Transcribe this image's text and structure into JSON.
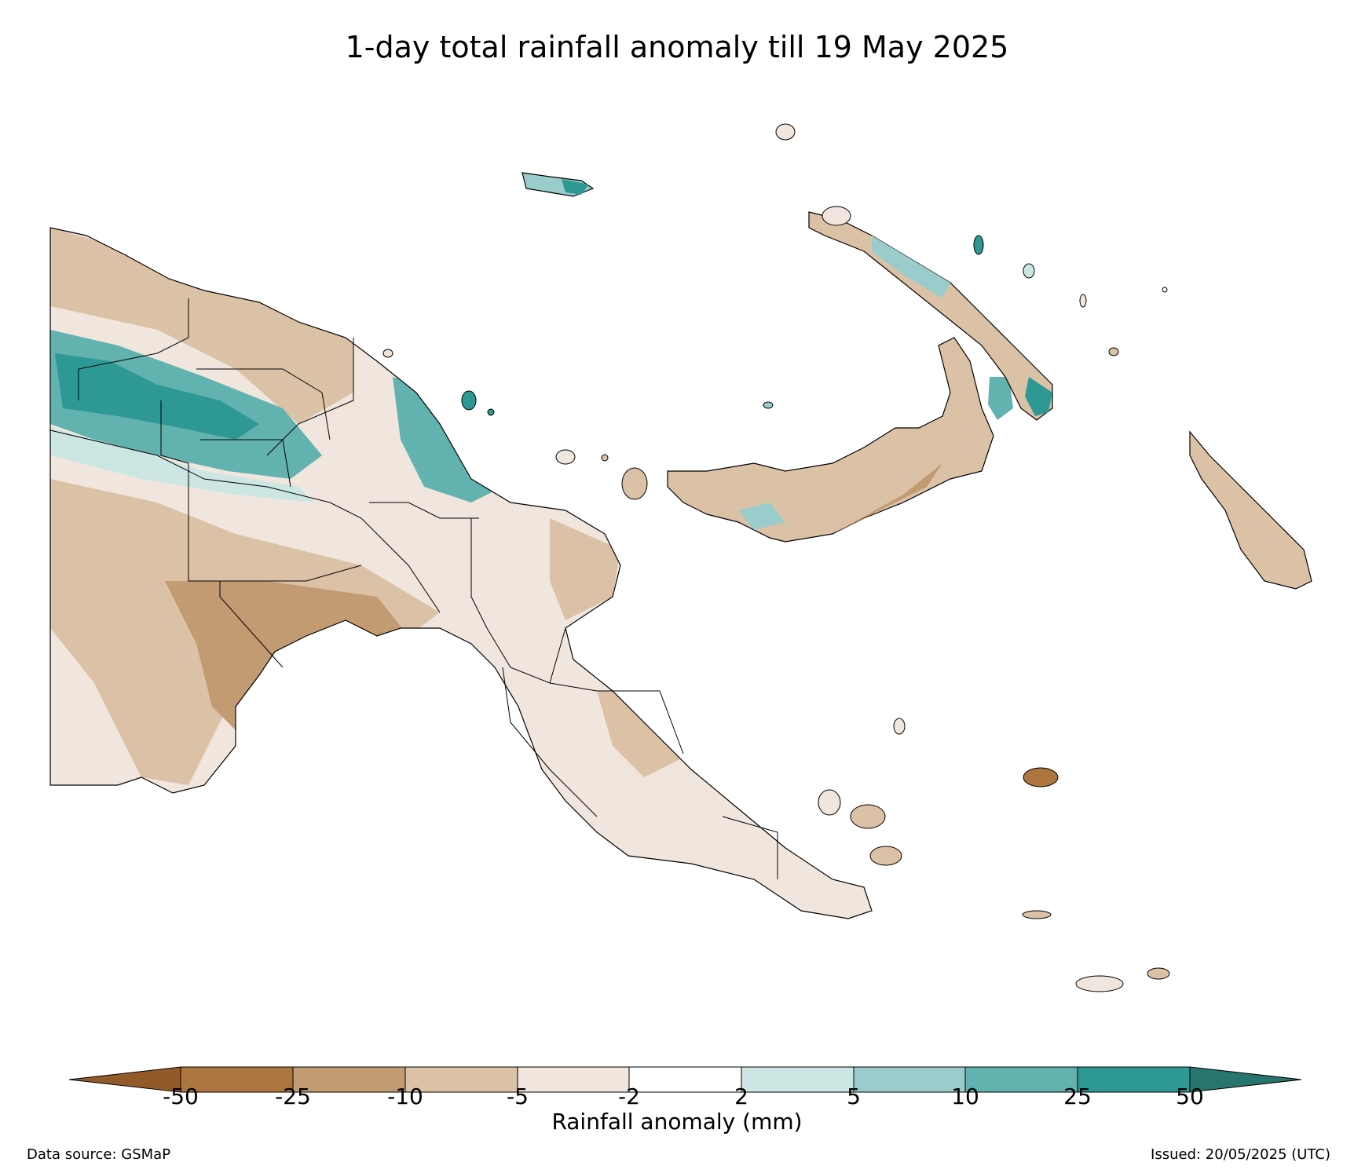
{
  "title": "1-day total rainfall anomaly till 19 May 2025",
  "colorbar": {
    "label": "Rainfall anomaly (mm)",
    "ticks": [
      "-50",
      "-25",
      "-10",
      "-5",
      "-2",
      "2",
      "5",
      "10",
      "25",
      "50"
    ],
    "colors": [
      "#925a28",
      "#ad763e",
      "#c39b72",
      "#dbc2a6",
      "#f1e6dd",
      "#ffffff",
      "#cce6e4",
      "#99cccb",
      "#62b2af",
      "#2e9994",
      "#26766f"
    ]
  },
  "footer": {
    "source": "Data source: GSMaP",
    "issued": "Issued: 20/05/2025 (UTC)"
  }
}
